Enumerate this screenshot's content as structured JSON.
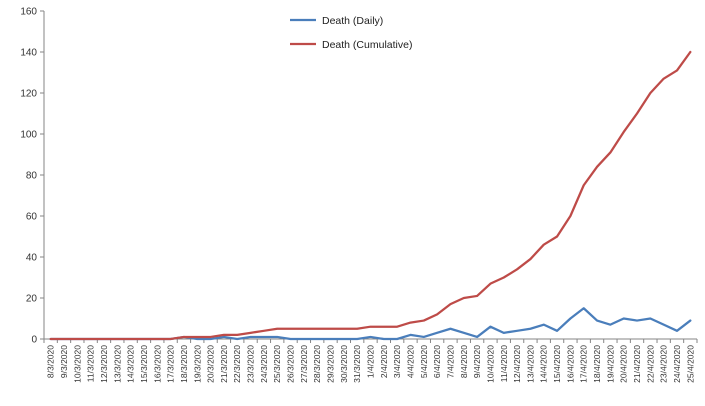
{
  "chart_data": {
    "type": "line",
    "title": "",
    "xlabel": "",
    "ylabel": "",
    "ylim": [
      0,
      160
    ],
    "yticks": [
      0,
      20,
      40,
      60,
      80,
      100,
      120,
      140,
      160
    ],
    "grid": false,
    "legend_position": "top-center",
    "categories": [
      "8/3/2020",
      "9/3/2020",
      "10/3/2020",
      "11/3/2020",
      "12/3/2020",
      "13/3/2020",
      "14/3/2020",
      "15/3/2020",
      "16/3/2020",
      "17/3/2020",
      "18/3/2020",
      "19/3/2020",
      "20/3/2020",
      "21/3/2020",
      "22/3/2020",
      "23/3/2020",
      "24/3/2020",
      "25/3/2020",
      "26/3/2020",
      "27/3/2020",
      "28/3/2020",
      "29/3/2020",
      "30/3/2020",
      "31/3/2020",
      "1/4/2020",
      "2/4/2020",
      "3/4/2020",
      "4/4/2020",
      "5/4/2020",
      "6/4/2020",
      "7/4/2020",
      "8/4/2020",
      "9/4/2020",
      "10/4/2020",
      "11/4/2020",
      "12/4/2020",
      "13/4/2020",
      "14/4/2020",
      "15/4/2020",
      "16/4/2020",
      "17/4/2020",
      "18/4/2020",
      "19/4/2020",
      "20/4/2020",
      "21/4/2020",
      "22/4/2020",
      "23/4/2020",
      "24/4/2020",
      "25/4/2020"
    ],
    "series": [
      {
        "name": "Death (Daily)",
        "color": "#4a7ebb",
        "values": [
          0,
          0,
          0,
          0,
          0,
          0,
          0,
          0,
          0,
          0,
          1,
          0,
          0,
          1,
          0,
          1,
          1,
          1,
          0,
          0,
          0,
          0,
          0,
          0,
          1,
          0,
          0,
          2,
          1,
          3,
          5,
          3,
          1,
          6,
          3,
          4,
          5,
          7,
          4,
          10,
          15,
          9,
          7,
          10,
          9,
          10,
          7,
          4,
          9
        ]
      },
      {
        "name": "Death (Cumulative)",
        "color": "#be4b48",
        "values": [
          0,
          0,
          0,
          0,
          0,
          0,
          0,
          0,
          0,
          0,
          1,
          1,
          1,
          2,
          2,
          3,
          4,
          5,
          5,
          5,
          5,
          5,
          5,
          5,
          6,
          6,
          6,
          8,
          9,
          12,
          17,
          20,
          21,
          27,
          30,
          34,
          39,
          46,
          50,
          60,
          75,
          84,
          91,
          101,
          110,
          120,
          127,
          131,
          140
        ]
      }
    ]
  }
}
